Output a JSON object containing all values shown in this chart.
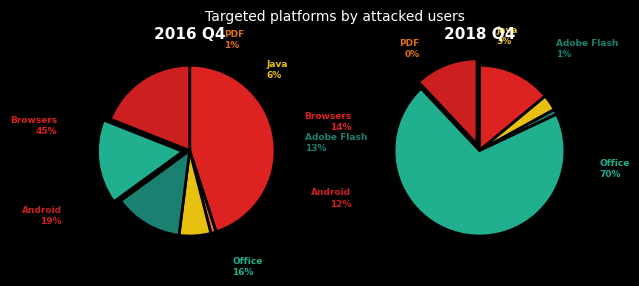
{
  "title": "Targeted platforms by attacked users",
  "background_color": "#000000",
  "title_color": "#ffffff",
  "title_fontsize": 10,
  "chart1_title": "2016 Q4",
  "chart1_labels": [
    "Browsers",
    "PDF",
    "Java",
    "Adobe Flash",
    "Office",
    "Android"
  ],
  "chart1_values": [
    45,
    1,
    6,
    13,
    16,
    19
  ],
  "chart1_colors": [
    "#dd2222",
    "#e07010",
    "#e8c010",
    "#1a8070",
    "#20b090",
    "#cc2020"
  ],
  "chart1_explode": [
    0,
    0,
    0,
    0,
    0.08,
    0
  ],
  "chart2_title": "2018 Q4",
  "chart2_labels": [
    "Browsers",
    "PDF",
    "Java",
    "Adobe Flash",
    "Office",
    "Android"
  ],
  "chart2_values": [
    14,
    0,
    3,
    1,
    70,
    12
  ],
  "chart2_colors": [
    "#dd2222",
    "#e07010",
    "#e8c010",
    "#1a8070",
    "#20b090",
    "#cc2020"
  ],
  "chart2_explode": [
    0,
    0,
    0,
    0,
    0,
    0.08
  ],
  "label_fontsize": 6.5,
  "chart_title_fontsize": 11,
  "chart_title_color": "#ffffff"
}
